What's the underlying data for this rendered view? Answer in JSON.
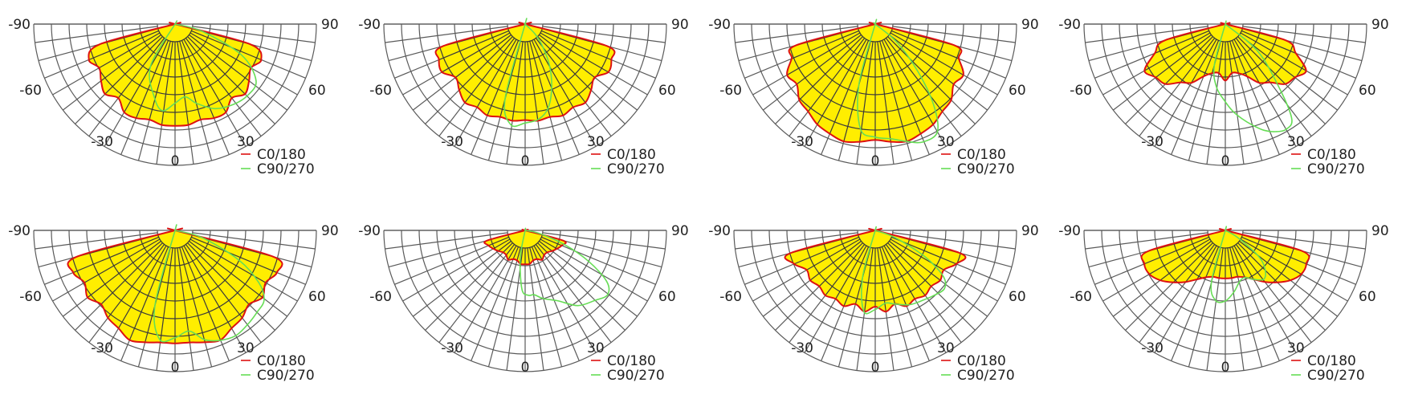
{
  "colors": {
    "fill": "#ffee00",
    "c0_180": "#dd1111",
    "c90_270": "#66dd55",
    "grid": "#5a5a5a"
  },
  "chart_data": [
    {
      "type": "polar",
      "angle_range": [
        -90,
        90
      ],
      "angle_ticks": [
        "-90",
        "-60",
        "-30",
        "0",
        "30",
        "60",
        "90"
      ],
      "legend": "bottom-right",
      "grid": true,
      "series": [
        {
          "name": "C0/180",
          "angles": [
            -90,
            -82.5,
            -75,
            -67.5,
            -60,
            -52.5,
            -45,
            -37.5,
            -30,
            -22.5,
            -15,
            -7.5,
            0,
            7.5,
            15,
            22.5,
            30,
            37.5,
            45,
            52.5,
            60,
            67.5,
            75,
            82.5,
            90
          ],
          "values": [
            0,
            0,
            0.55,
            0.66,
            0.62,
            0.66,
            0.7,
            0.66,
            0.72,
            0.72,
            0.7,
            0.72,
            0.72,
            0.72,
            0.7,
            0.72,
            0.72,
            0.66,
            0.7,
            0.66,
            0.62,
            0.66,
            0.55,
            0,
            0
          ]
        },
        {
          "name": "C90/270",
          "angles": [
            -90,
            -45,
            -30,
            -15,
            -8,
            0,
            8,
            15,
            25,
            35,
            45,
            55,
            65,
            75,
            90
          ],
          "values": [
            0,
            0,
            0.35,
            0.55,
            0.62,
            0.56,
            0.52,
            0.58,
            0.66,
            0.7,
            0.72,
            0.7,
            0.52,
            0.2,
            0
          ]
        }
      ]
    },
    {
      "type": "polar",
      "angle_range": [
        -90,
        90
      ],
      "angle_ticks": [
        "-90",
        "-60",
        "-30",
        "0",
        "30",
        "60",
        "90"
      ],
      "legend": "bottom-right",
      "grid": true,
      "series": [
        {
          "name": "C0/180",
          "angles": [
            -90,
            -82.5,
            -75,
            -67.5,
            -60,
            -52.5,
            -45,
            -37.5,
            -30,
            -22.5,
            -15,
            -7.5,
            0,
            7.5,
            15,
            22.5,
            30,
            37.5,
            45,
            52.5,
            60,
            67.5,
            75,
            82.5,
            90
          ],
          "values": [
            0,
            0,
            0.6,
            0.66,
            0.68,
            0.62,
            0.66,
            0.7,
            0.68,
            0.7,
            0.68,
            0.69,
            0.68,
            0.69,
            0.68,
            0.7,
            0.68,
            0.7,
            0.66,
            0.62,
            0.68,
            0.66,
            0.6,
            0,
            0
          ]
        },
        {
          "name": "C90/270",
          "angles": [
            -90,
            -30,
            -15,
            -8,
            0,
            8,
            15,
            22,
            30,
            38,
            45,
            60,
            75,
            90
          ],
          "values": [
            0,
            0,
            0.55,
            0.72,
            0.7,
            0.68,
            0.62,
            0.5,
            0.35,
            0.2,
            0.1,
            0,
            0,
            0
          ]
        }
      ]
    },
    {
      "type": "polar",
      "angle_range": [
        -90,
        90
      ],
      "angle_ticks": [
        "-90",
        "-60",
        "-30",
        "0",
        "30",
        "60",
        "90"
      ],
      "legend": "bottom-right",
      "grid": true,
      "series": [
        {
          "name": "C0/180",
          "angles": [
            -90,
            -82.5,
            -75,
            -67.5,
            -60,
            -52.5,
            -45,
            -37.5,
            -30,
            -22.5,
            -15,
            -7.5,
            0,
            7.5,
            15,
            22.5,
            30,
            37.5,
            45,
            52.5,
            60,
            67.5,
            75,
            82.5,
            90
          ],
          "values": [
            0,
            0,
            0.58,
            0.64,
            0.72,
            0.7,
            0.76,
            0.78,
            0.82,
            0.84,
            0.86,
            0.84,
            0.82,
            0.84,
            0.86,
            0.84,
            0.82,
            0.78,
            0.76,
            0.7,
            0.72,
            0.64,
            0.58,
            0,
            0
          ]
        },
        {
          "name": "C90/270",
          "angles": [
            -90,
            -30,
            -15,
            -8,
            0,
            8,
            15,
            22,
            30,
            36,
            42,
            50,
            60,
            90
          ],
          "values": [
            0,
            0,
            0.45,
            0.75,
            0.8,
            0.82,
            0.86,
            0.9,
            0.88,
            0.7,
            0.45,
            0.2,
            0,
            0
          ]
        }
      ]
    },
    {
      "type": "polar",
      "angle_range": [
        -90,
        90
      ],
      "angle_ticks": [
        "-90",
        "-60",
        "-30",
        "0",
        "30",
        "60",
        "90"
      ],
      "legend": "bottom-right",
      "grid": true,
      "series": [
        {
          "name": "C0/180",
          "angles": [
            -90,
            -82.5,
            -75,
            -67.5,
            -60,
            -52.5,
            -45,
            -37.5,
            -30,
            -22.5,
            -15,
            -7.5,
            0,
            7.5,
            15,
            22.5,
            30,
            37.5,
            45,
            52.5,
            60,
            67.5,
            75,
            82.5,
            90
          ],
          "values": [
            0,
            0,
            0.44,
            0.54,
            0.66,
            0.62,
            0.6,
            0.52,
            0.48,
            0.4,
            0.36,
            0.35,
            0.4,
            0.35,
            0.36,
            0.4,
            0.48,
            0.52,
            0.6,
            0.62,
            0.66,
            0.54,
            0.44,
            0,
            0
          ]
        },
        {
          "name": "C90/270",
          "angles": [
            -90,
            -30,
            -15,
            -8,
            0,
            5,
            10,
            15,
            20,
            25,
            30,
            35,
            40,
            50,
            90
          ],
          "values": [
            0,
            0,
            0.3,
            0.45,
            0.55,
            0.62,
            0.68,
            0.74,
            0.8,
            0.84,
            0.86,
            0.82,
            0.6,
            0.3,
            0
          ]
        }
      ]
    },
    {
      "type": "polar",
      "angle_range": [
        -90,
        90
      ],
      "angle_ticks": [
        "-90",
        "-60",
        "-30",
        "0",
        "30",
        "60",
        "90"
      ],
      "legend": "bottom-right",
      "grid": true,
      "series": [
        {
          "name": "C0/180",
          "angles": [
            -90,
            -82.5,
            -75,
            -67.5,
            -60,
            -52.5,
            -45,
            -37.5,
            -30,
            -22.5,
            -15,
            -7.5,
            0,
            7.5,
            15,
            22.5,
            30,
            37.5,
            45,
            52.5,
            60,
            67.5,
            75,
            82.5,
            90
          ],
          "values": [
            0,
            0,
            0.72,
            0.78,
            0.74,
            0.78,
            0.74,
            0.78,
            0.8,
            0.84,
            0.82,
            0.8,
            0.8,
            0.8,
            0.82,
            0.84,
            0.8,
            0.78,
            0.74,
            0.78,
            0.74,
            0.78,
            0.72,
            0,
            0
          ]
        },
        {
          "name": "C90/270",
          "angles": [
            -90,
            -30,
            -15,
            -8,
            0,
            8,
            15,
            22,
            30,
            38,
            45,
            52,
            58,
            65,
            75,
            90
          ],
          "values": [
            0,
            0,
            0.55,
            0.78,
            0.76,
            0.72,
            0.8,
            0.84,
            0.86,
            0.84,
            0.82,
            0.8,
            0.7,
            0.5,
            0.2,
            0
          ]
        }
      ]
    },
    {
      "type": "polar",
      "angle_range": [
        -90,
        90
      ],
      "angle_ticks": [
        "-90",
        "-60",
        "-30",
        "0",
        "30",
        "60",
        "90"
      ],
      "legend": "bottom-right",
      "grid": true,
      "series": [
        {
          "name": "C0/180",
          "angles": [
            -90,
            -82.5,
            -75,
            -67.5,
            -60,
            -52.5,
            -45,
            -37.5,
            -30,
            -22.5,
            -15,
            -7.5,
            0,
            7.5,
            15,
            22.5,
            30,
            37.5,
            45,
            52.5,
            60,
            67.5,
            75,
            82.5,
            90
          ],
          "values": [
            0,
            0,
            0.28,
            0.28,
            0.26,
            0.24,
            0.22,
            0.22,
            0.24,
            0.22,
            0.22,
            0.24,
            0.24,
            0.24,
            0.22,
            0.22,
            0.24,
            0.22,
            0.22,
            0.24,
            0.26,
            0.28,
            0.28,
            0,
            0
          ]
        },
        {
          "name": "C90/270",
          "angles": [
            -90,
            -20,
            -10,
            -3,
            3,
            8,
            15,
            25,
            35,
            45,
            52,
            58,
            64,
            70,
            78,
            90
          ],
          "values": [
            0,
            0,
            0.2,
            0.42,
            0.46,
            0.46,
            0.5,
            0.55,
            0.65,
            0.7,
            0.74,
            0.68,
            0.5,
            0.3,
            0.1,
            0
          ]
        }
      ]
    },
    {
      "type": "polar",
      "angle_range": [
        -90,
        90
      ],
      "angle_ticks": [
        "-90",
        "-60",
        "-30",
        "0",
        "30",
        "60",
        "90"
      ],
      "legend": "bottom-right",
      "grid": true,
      "series": [
        {
          "name": "C0/180",
          "angles": [
            -90,
            -82.5,
            -75,
            -67.5,
            -60,
            -52.5,
            -45,
            -37.5,
            -30,
            -22.5,
            -15,
            -7.5,
            0,
            7.5,
            15,
            22.5,
            30,
            37.5,
            45,
            52.5,
            60,
            67.5,
            75,
            82.5,
            90
          ],
          "values": [
            0,
            0,
            0.62,
            0.62,
            0.56,
            0.58,
            0.56,
            0.58,
            0.56,
            0.58,
            0.54,
            0.58,
            0.54,
            0.58,
            0.54,
            0.58,
            0.56,
            0.58,
            0.56,
            0.58,
            0.56,
            0.62,
            0.62,
            0,
            0
          ]
        },
        {
          "name": "C90/270",
          "angles": [
            -90,
            -25,
            -15,
            -8,
            0,
            8,
            15,
            25,
            35,
            42,
            50,
            56,
            62,
            70,
            90
          ],
          "values": [
            0,
            0,
            0.35,
            0.58,
            0.56,
            0.52,
            0.54,
            0.58,
            0.6,
            0.62,
            0.64,
            0.58,
            0.4,
            0.15,
            0
          ]
        }
      ]
    },
    {
      "type": "polar",
      "angle_range": [
        -90,
        90
      ],
      "angle_ticks": [
        "-90",
        "-60",
        "-30",
        "0",
        "30",
        "60",
        "90"
      ],
      "legend": "bottom-right",
      "grid": true,
      "series": [
        {
          "name": "C0/180",
          "angles": [
            -90,
            -82.5,
            -75,
            -67.5,
            -60,
            -52.5,
            -45,
            -37.5,
            -30,
            -22.5,
            -15,
            -7.5,
            0,
            7.5,
            15,
            22.5,
            30,
            37.5,
            45,
            52.5,
            60,
            67.5,
            75,
            82.5,
            90
          ],
          "values": [
            0,
            0,
            0.56,
            0.62,
            0.62,
            0.58,
            0.52,
            0.46,
            0.4,
            0.36,
            0.34,
            0.34,
            0.34,
            0.34,
            0.34,
            0.36,
            0.4,
            0.46,
            0.52,
            0.58,
            0.62,
            0.62,
            0.56,
            0,
            0
          ]
        },
        {
          "name": "C90/270",
          "angles": [
            -90,
            -30,
            -15,
            -8,
            0,
            8,
            15,
            22,
            30,
            38,
            45,
            52,
            60,
            90
          ],
          "values": [
            0,
            0,
            0.38,
            0.5,
            0.5,
            0.44,
            0.38,
            0.36,
            0.4,
            0.44,
            0.4,
            0.3,
            0.1,
            0
          ]
        }
      ]
    }
  ]
}
